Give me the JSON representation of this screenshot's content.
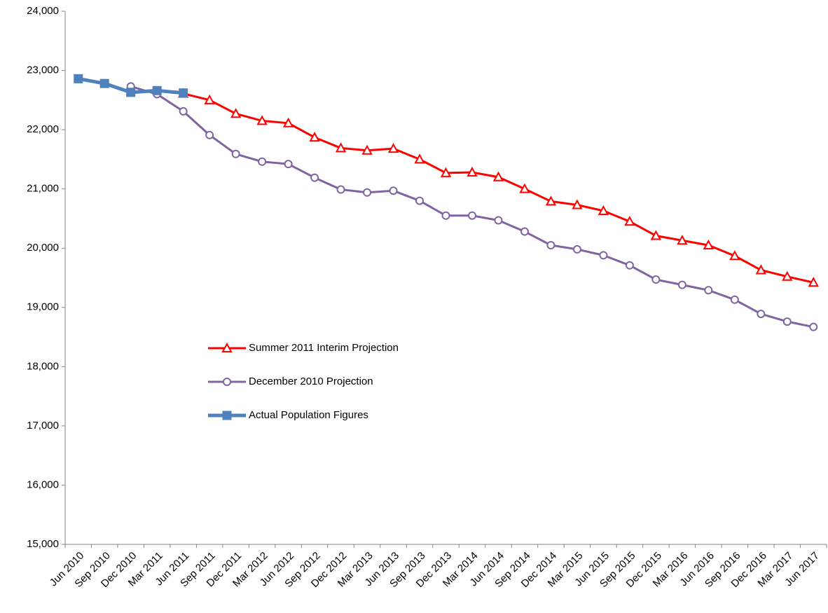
{
  "chart_data": {
    "type": "line",
    "categories": [
      "Jun 2010",
      "Sep 2010",
      "Dec 2010",
      "Mar 2011",
      "Jun 2011",
      "Sep 2011",
      "Dec 2011",
      "Mar 2012",
      "Jun 2012",
      "Sep 2012",
      "Dec 2012",
      "Mar 2013",
      "Jun 2013",
      "Sep 2013",
      "Dec 2013",
      "Mar 2014",
      "Jun 2014",
      "Sep 2014",
      "Dec 2014",
      "Mar 2015",
      "Jun 2015",
      "Sep 2015",
      "Dec 2015",
      "Mar 2016",
      "Jun 2016",
      "Sep 2016",
      "Dec 2016",
      "Mar 2017",
      "Jun 2017"
    ],
    "series": [
      {
        "name": "Summer 2011 Interim Projection",
        "color": "#ff0000",
        "marker": "triangle",
        "values": [
          null,
          null,
          null,
          null,
          22610,
          22500,
          22270,
          22150,
          22110,
          21870,
          21690,
          21650,
          21680,
          21500,
          21270,
          21280,
          21200,
          21000,
          20790,
          20730,
          20630,
          20450,
          20210,
          20130,
          20050,
          19870,
          19630,
          19520,
          19420
        ]
      },
      {
        "name": "December 2010 Projection",
        "color": "#8064a2",
        "marker": "circle",
        "values": [
          null,
          null,
          22730,
          22600,
          22310,
          21910,
          21590,
          21460,
          21420,
          21190,
          20990,
          20940,
          20970,
          20800,
          20550,
          20550,
          20470,
          20280,
          20050,
          19980,
          19880,
          19710,
          19470,
          19380,
          19290,
          19130,
          18890,
          18760,
          18670
        ]
      },
      {
        "name": "Actual Population Figures",
        "color": "#4f81bd",
        "marker": "square",
        "values": [
          22860,
          22780,
          22630,
          22660,
          22620,
          null,
          null,
          null,
          null,
          null,
          null,
          null,
          null,
          null,
          null,
          null,
          null,
          null,
          null,
          null,
          null,
          null,
          null,
          null,
          null,
          null,
          null,
          null,
          null
        ]
      }
    ],
    "ylim": [
      15000,
      24000
    ],
    "yticks": [
      {
        "value": 15000,
        "label": "15,000"
      },
      {
        "value": 16000,
        "label": "16,000"
      },
      {
        "value": 17000,
        "label": "17,000"
      },
      {
        "value": 18000,
        "label": "18,000"
      },
      {
        "value": 19000,
        "label": "19,000"
      },
      {
        "value": 20000,
        "label": "20,000"
      },
      {
        "value": 21000,
        "label": "21,000"
      },
      {
        "value": 22000,
        "label": "22,000"
      },
      {
        "value": 23000,
        "label": "23,000"
      },
      {
        "value": 24000,
        "label": "24,000"
      }
    ],
    "grid": false,
    "legend": "left"
  }
}
